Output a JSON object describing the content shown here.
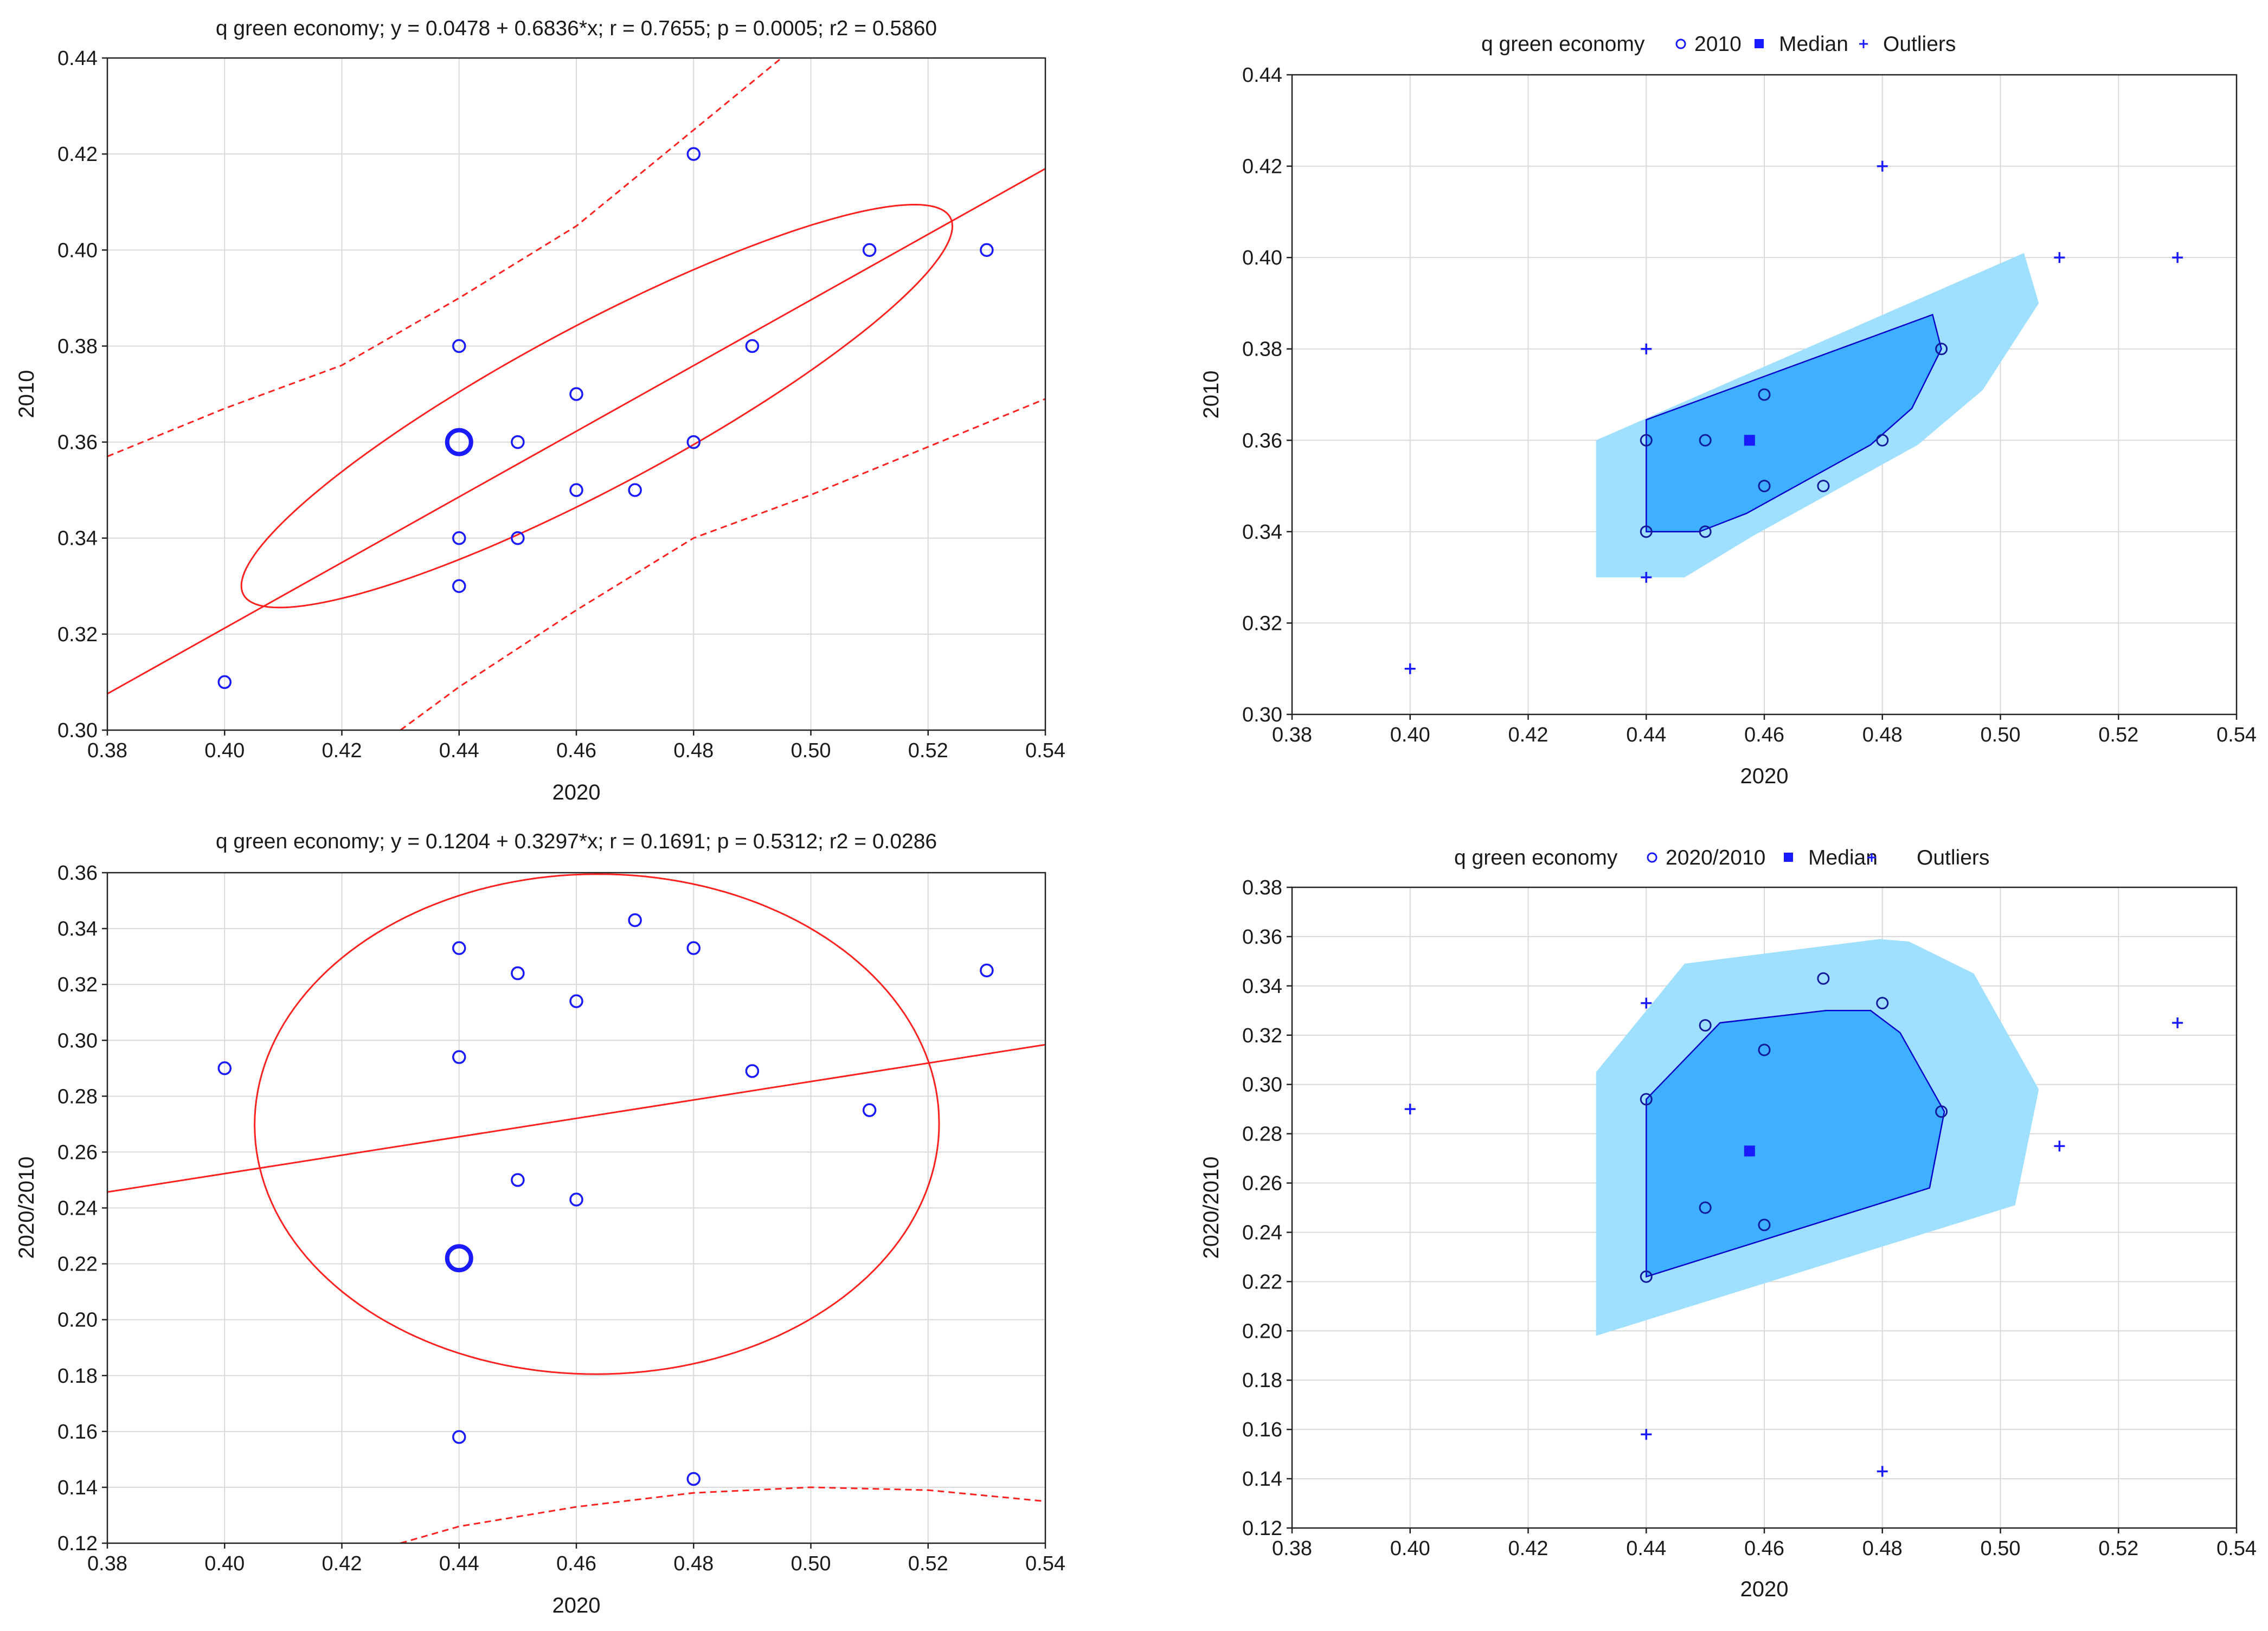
{
  "colors": {
    "points": "#1a1aff",
    "fit": "#ff2020",
    "bag_outer": "#9fdfff",
    "bag_inner": "#3fb0ff",
    "bag_edge": "#0000cc",
    "grid": "#d9d9d9"
  },
  "chart_data": [
    {
      "id": "tl",
      "type": "scatter",
      "title": "q green economy; y = 0.0478 + 0.6836*x;  r = 0.7655; p = 0.0005; r2 = 0.5860",
      "xlabel": "2020",
      "ylabel": "2010",
      "xlim": [
        0.38,
        0.54
      ],
      "ylim": [
        0.3,
        0.44
      ],
      "xticks": [
        "0.38",
        "0.40",
        "0.42",
        "0.44",
        "0.46",
        "0.48",
        "0.50",
        "0.52",
        "0.54"
      ],
      "yticks": [
        "0.30",
        "0.32",
        "0.34",
        "0.36",
        "0.38",
        "0.40",
        "0.42",
        "0.44"
      ],
      "points": [
        [
          0.4,
          0.31
        ],
        [
          0.44,
          0.33
        ],
        [
          0.44,
          0.34
        ],
        [
          0.44,
          0.38
        ],
        [
          0.45,
          0.34
        ],
        [
          0.45,
          0.36
        ],
        [
          0.46,
          0.35
        ],
        [
          0.46,
          0.37
        ],
        [
          0.47,
          0.35
        ],
        [
          0.48,
          0.36
        ],
        [
          0.48,
          0.42
        ],
        [
          0.49,
          0.38
        ],
        [
          0.51,
          0.4
        ],
        [
          0.53,
          0.4
        ]
      ],
      "mean_marker": [
        0.44,
        0.36
      ],
      "regression": {
        "intercept": 0.0478,
        "slope": 0.6836
      },
      "confidence_upper": [
        [
          0.38,
          0.357
        ],
        [
          0.4,
          0.367
        ],
        [
          0.42,
          0.376
        ],
        [
          0.44,
          0.39
        ],
        [
          0.46,
          0.405
        ],
        [
          0.48,
          0.425
        ],
        [
          0.5,
          0.445
        ]
      ],
      "confidence_lower": [
        [
          0.43,
          0.3
        ],
        [
          0.44,
          0.309
        ],
        [
          0.46,
          0.325
        ],
        [
          0.48,
          0.34
        ],
        [
          0.5,
          0.349
        ],
        [
          0.52,
          0.359
        ],
        [
          0.54,
          0.369
        ]
      ],
      "ellipse": {
        "center": [
          0.4635,
          0.3675
        ],
        "semi_major_axis": [
          0.06,
          0.0398
        ],
        "semi_minor_axis": [
          -0.0088,
          0.0133
        ]
      }
    },
    {
      "id": "tr",
      "type": "bagplot",
      "title": "q green economy",
      "legend": [
        "2010",
        "Median",
        "Outliers"
      ],
      "xlabel": "2020",
      "ylabel": "2010",
      "xlim": [
        0.38,
        0.54
      ],
      "ylim": [
        0.3,
        0.44
      ],
      "xticks": [
        "0.38",
        "0.40",
        "0.42",
        "0.44",
        "0.46",
        "0.48",
        "0.50",
        "0.52",
        "0.54"
      ],
      "yticks": [
        "0.30",
        "0.32",
        "0.34",
        "0.36",
        "0.38",
        "0.40",
        "0.42",
        "0.44"
      ],
      "fence": [
        [
          0.4315,
          0.33
        ],
        [
          0.4465,
          0.33
        ],
        [
          0.458,
          0.339
        ],
        [
          0.486,
          0.359
        ],
        [
          0.497,
          0.371
        ],
        [
          0.5065,
          0.39
        ],
        [
          0.504,
          0.401
        ],
        [
          0.4315,
          0.36
        ]
      ],
      "bag": [
        [
          0.44,
          0.34
        ],
        [
          0.449,
          0.34
        ],
        [
          0.457,
          0.344
        ],
        [
          0.478,
          0.359
        ],
        [
          0.485,
          0.367
        ],
        [
          0.49,
          0.38
        ],
        [
          0.4885,
          0.3875
        ],
        [
          0.44,
          0.3645
        ]
      ],
      "points": [
        [
          0.44,
          0.34
        ],
        [
          0.44,
          0.36
        ],
        [
          0.45,
          0.34
        ],
        [
          0.45,
          0.36
        ],
        [
          0.46,
          0.35
        ],
        [
          0.46,
          0.37
        ],
        [
          0.47,
          0.35
        ],
        [
          0.48,
          0.36
        ],
        [
          0.49,
          0.38
        ]
      ],
      "median": [
        0.4575,
        0.36
      ],
      "outliers": [
        [
          0.4,
          0.31
        ],
        [
          0.44,
          0.33
        ],
        [
          0.44,
          0.38
        ],
        [
          0.48,
          0.42
        ],
        [
          0.51,
          0.4
        ],
        [
          0.53,
          0.4
        ]
      ]
    },
    {
      "id": "bl",
      "type": "scatter",
      "title": "q green economy; y = 0.1204 + 0.3297*x;  r = 0.1691; p = 0.5312; r2 = 0.0286",
      "xlabel": "2020",
      "ylabel": "2020/2010",
      "xlim": [
        0.38,
        0.54
      ],
      "ylim": [
        0.12,
        0.36
      ],
      "xticks": [
        "0.38",
        "0.40",
        "0.42",
        "0.44",
        "0.46",
        "0.48",
        "0.50",
        "0.52",
        "0.54"
      ],
      "yticks": [
        "0.12",
        "0.14",
        "0.16",
        "0.18",
        "0.20",
        "0.22",
        "0.24",
        "0.26",
        "0.28",
        "0.30",
        "0.32",
        "0.34",
        "0.36"
      ],
      "points": [
        [
          0.4,
          0.29
        ],
        [
          0.44,
          0.333
        ],
        [
          0.44,
          0.294
        ],
        [
          0.44,
          0.158
        ],
        [
          0.45,
          0.324
        ],
        [
          0.45,
          0.25
        ],
        [
          0.46,
          0.314
        ],
        [
          0.46,
          0.243
        ],
        [
          0.47,
          0.343
        ],
        [
          0.48,
          0.333
        ],
        [
          0.48,
          0.143
        ],
        [
          0.49,
          0.289
        ],
        [
          0.51,
          0.275
        ],
        [
          0.53,
          0.325
        ]
      ],
      "mean_marker": [
        0.44,
        0.222
      ],
      "regression": {
        "intercept": 0.1204,
        "slope": 0.3297
      },
      "confidence_lower": [
        [
          0.43,
          0.12
        ],
        [
          0.44,
          0.126
        ],
        [
          0.46,
          0.133
        ],
        [
          0.48,
          0.138
        ],
        [
          0.5,
          0.14
        ],
        [
          0.52,
          0.139
        ],
        [
          0.54,
          0.135
        ]
      ],
      "ellipse": {
        "center": [
          0.4635,
          0.27
        ],
        "semi_major_axis": [
          0.0555,
          0.028
        ],
        "semi_minor_axis": [
          -0.0181,
          0.085
        ]
      }
    },
    {
      "id": "br",
      "type": "bagplot",
      "title": "q green economy",
      "legend": [
        "2020/2010",
        "Median",
        "Outliers"
      ],
      "xlabel": "2020",
      "ylabel": "2020/2010",
      "xlim": [
        0.38,
        0.54
      ],
      "ylim": [
        0.12,
        0.38
      ],
      "xticks": [
        "0.38",
        "0.40",
        "0.42",
        "0.44",
        "0.46",
        "0.48",
        "0.50",
        "0.52",
        "0.54"
      ],
      "yticks": [
        "0.12",
        "0.14",
        "0.16",
        "0.18",
        "0.20",
        "0.22",
        "0.24",
        "0.26",
        "0.28",
        "0.30",
        "0.32",
        "0.34",
        "0.36",
        "0.38"
      ],
      "fence": [
        [
          0.4315,
          0.198
        ],
        [
          0.5025,
          0.251
        ],
        [
          0.5065,
          0.298
        ],
        [
          0.4955,
          0.345
        ],
        [
          0.4845,
          0.358
        ],
        [
          0.4795,
          0.359
        ],
        [
          0.4465,
          0.349
        ],
        [
          0.4315,
          0.305
        ]
      ],
      "bag": [
        [
          0.44,
          0.222
        ],
        [
          0.488,
          0.258
        ],
        [
          0.4905,
          0.289
        ],
        [
          0.483,
          0.321
        ],
        [
          0.478,
          0.33
        ],
        [
          0.4705,
          0.33
        ],
        [
          0.4525,
          0.325
        ],
        [
          0.44,
          0.294
        ]
      ],
      "points": [
        [
          0.44,
          0.222
        ],
        [
          0.44,
          0.294
        ],
        [
          0.45,
          0.25
        ],
        [
          0.45,
          0.324
        ],
        [
          0.46,
          0.243
        ],
        [
          0.46,
          0.314
        ],
        [
          0.47,
          0.343
        ],
        [
          0.48,
          0.333
        ],
        [
          0.49,
          0.289
        ]
      ],
      "median": [
        0.4575,
        0.273
      ],
      "outliers": [
        [
          0.4,
          0.29
        ],
        [
          0.44,
          0.333
        ],
        [
          0.44,
          0.158
        ],
        [
          0.48,
          0.143
        ],
        [
          0.51,
          0.275
        ],
        [
          0.53,
          0.325
        ]
      ]
    }
  ]
}
